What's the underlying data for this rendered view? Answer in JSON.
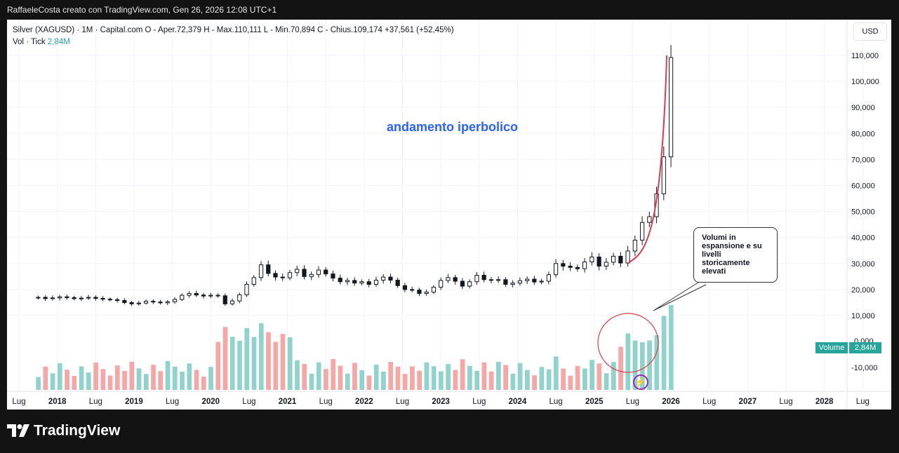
{
  "header": {
    "caption": "RaffaeleCosta creato con TradingView.com, Gen 26, 2026 12:08 UTC+1"
  },
  "legend": {
    "symbol_line": "Silver (XAGUSD) · 1M · Capital.com  O - Aper.72,379  H - Max.110,111  L - Min.70,894  C - Chius.109,174  +37,561 (+52,45%)",
    "vol_label": "Vol · Tick",
    "vol_value": "2,84M"
  },
  "currency_button": "USD",
  "annotation_title": "andamento iperbolico",
  "callout_text": "Volumi in\nespansione e su\nlivelli\nstoricamente\nelevati",
  "volume_tag": {
    "label": "Volume",
    "value": "2,84M"
  },
  "footer": {
    "brand": "TradingView"
  },
  "colors": {
    "volume_up": "#8fd3cc",
    "volume_down": "#f4a7a5",
    "curve": "#e03a4b",
    "annotation": "#2962ff",
    "tag": "#26a69a"
  },
  "chart_data": {
    "type": "candlestick",
    "price_axis": {
      "ticks": [
        110000,
        100000,
        90000,
        80000,
        70000,
        60000,
        50000,
        40000,
        30000,
        20000,
        10000
      ],
      "tick_labels": [
        "110,000",
        "100,000",
        "90,000",
        "80,000",
        "70,000",
        "60,000",
        "50,000",
        "40,000",
        "30,000",
        "20,000",
        "10,000"
      ]
    },
    "volume_axis_labels": [
      "0,000",
      "-10,000"
    ],
    "time_axis": {
      "ticks": [
        {
          "t": 2017.5,
          "label": "Lug",
          "bold": false
        },
        {
          "t": 2018.0,
          "label": "2018",
          "bold": true
        },
        {
          "t": 2018.5,
          "label": "Lug",
          "bold": false
        },
        {
          "t": 2019.0,
          "label": "2019",
          "bold": true
        },
        {
          "t": 2019.5,
          "label": "Lug",
          "bold": false
        },
        {
          "t": 2020.0,
          "label": "2020",
          "bold": true
        },
        {
          "t": 2020.5,
          "label": "Lug",
          "bold": false
        },
        {
          "t": 2021.0,
          "label": "2021",
          "bold": true
        },
        {
          "t": 2021.5,
          "label": "Lug",
          "bold": false
        },
        {
          "t": 2022.0,
          "label": "2022",
          "bold": true
        },
        {
          "t": 2022.5,
          "label": "Lug",
          "bold": false
        },
        {
          "t": 2023.0,
          "label": "2023",
          "bold": true
        },
        {
          "t": 2023.5,
          "label": "Lug",
          "bold": false
        },
        {
          "t": 2024.0,
          "label": "2024",
          "bold": true
        },
        {
          "t": 2024.5,
          "label": "Lug",
          "bold": false
        },
        {
          "t": 2025.0,
          "label": "2025",
          "bold": true
        },
        {
          "t": 2025.5,
          "label": "Lug",
          "bold": false
        },
        {
          "t": 2026.0,
          "label": "2026",
          "bold": true
        },
        {
          "t": 2026.5,
          "label": "Lug",
          "bold": false
        },
        {
          "t": 2027.0,
          "label": "2027",
          "bold": true
        },
        {
          "t": 2027.5,
          "label": "Lug",
          "bold": false
        },
        {
          "t": 2028.0,
          "label": "2028",
          "bold": true
        },
        {
          "t": 2028.5,
          "label": "Lug",
          "bold": false
        }
      ]
    },
    "candles_close": [
      17000,
      16500,
      16800,
      17200,
      16900,
      16500,
      16700,
      17000,
      16600,
      16300,
      16100,
      15800,
      15000,
      14500,
      14800,
      15500,
      15200,
      14900,
      15300,
      16200,
      17800,
      18500,
      17900,
      17500,
      17800,
      17600,
      14500,
      15600,
      18000,
      22000,
      24600,
      29500,
      26200,
      24800,
      24500,
      26500,
      27800,
      25000,
      25800,
      27500,
      26000,
      24400,
      23000,
      23500,
      22500,
      23000,
      22000,
      23600,
      24800,
      23600,
      21500,
      20000,
      19800,
      18500,
      19000,
      20900,
      23500,
      24600,
      23200,
      21300,
      23000,
      25500,
      23800,
      23700,
      23800,
      22000,
      22500,
      23400,
      24000,
      22900,
      23200,
      25700,
      30000,
      29000,
      28500,
      28000,
      30600,
      32500,
      29000,
      30500,
      32800,
      30200,
      34800,
      39000,
      45800,
      48000,
      56800,
      71000,
      109174
    ],
    "annotation_points": [
      "Volumi in espansione e su livelli storicamente elevati"
    ]
  }
}
